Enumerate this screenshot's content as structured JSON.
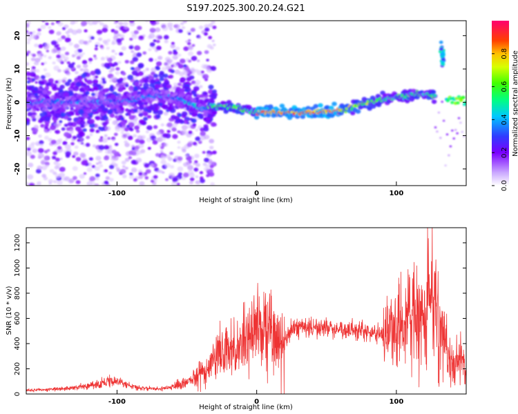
{
  "title": "S197.2025.300.20.24.G21",
  "chart_data": [
    {
      "type": "heatmap",
      "xlabel": "Height of straight line (km)",
      "ylabel": "Frequency (Hz)",
      "xlim": [
        -165,
        150
      ],
      "ylim": [
        -25,
        24.5
      ],
      "x_ticks": [
        -100,
        0,
        100
      ],
      "y_ticks": [
        -20,
        -10,
        0,
        10,
        20
      ],
      "colorbar": {
        "label": "Normalized spectral amplitude",
        "ticks": [
          "0.0",
          "0.2",
          "0.4",
          "0.6",
          "0.8"
        ],
        "range": [
          0,
          1
        ]
      },
      "ridge_frequency": {
        "x": [
          -165,
          -130,
          -100,
          -75,
          -55,
          -40,
          -25,
          -10,
          0,
          20,
          40,
          60,
          80,
          100,
          115,
          128
        ],
        "y": [
          0,
          0,
          0,
          2,
          1,
          -2,
          -1,
          -2,
          -3,
          -3,
          -3,
          -2.5,
          0,
          1.5,
          2.5,
          2
        ]
      },
      "spike": {
        "x": 133,
        "y": 14
      }
    },
    {
      "type": "line",
      "xlabel": "Height of straight line (km)",
      "ylabel": "SNR (10 * v/v)",
      "xlim": [
        -165,
        150
      ],
      "ylim": [
        0,
        1320
      ],
      "x_ticks": [
        -100,
        0,
        100
      ],
      "y_ticks": [
        0,
        200,
        400,
        600,
        800,
        1000,
        1200
      ],
      "color": "#ee3333",
      "series": [
        {
          "name": "SNR",
          "x": [
            -165,
            -150,
            -130,
            -120,
            -110,
            -100,
            -90,
            -80,
            -70,
            -60,
            -50,
            -45,
            -40,
            -35,
            -30,
            -25,
            -20,
            -15,
            -10,
            -5,
            0,
            5,
            10,
            15,
            20,
            25,
            30,
            40,
            50,
            60,
            70,
            80,
            90,
            100,
            105,
            110,
            115,
            120,
            125,
            130,
            135,
            140,
            145,
            150
          ],
          "y": [
            30,
            35,
            50,
            65,
            90,
            110,
            60,
            45,
            40,
            55,
            90,
            120,
            170,
            220,
            280,
            310,
            330,
            360,
            420,
            450,
            480,
            520,
            450,
            400,
            430,
            520,
            530,
            530,
            520,
            510,
            500,
            490,
            480,
            500,
            560,
            600,
            650,
            630,
            700,
            600,
            450,
            250,
            280,
            260
          ]
        }
      ]
    }
  ]
}
